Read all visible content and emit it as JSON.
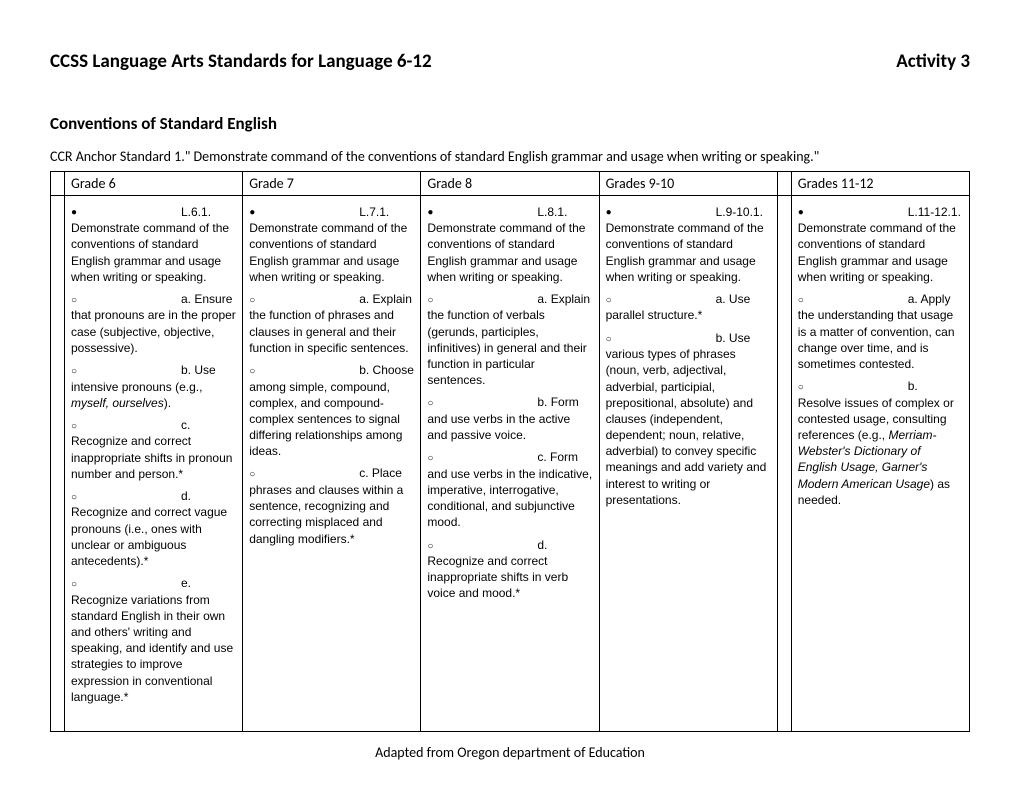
{
  "header": {
    "left": "CCSS Language Arts Standards for Language 6-12",
    "right": "Activity 3"
  },
  "subheading": "Conventions of Standard English",
  "anchor": "CCR Anchor Standard 1.\" Demonstrate command of the conventions of standard English grammar and usage when writing or speaking.\"",
  "columns": {
    "c1": "Grade  6",
    "c2": "Grade 7",
    "c3": "Grade 8",
    "c4": "Grades 9-10",
    "c5": "Grades 11-12"
  },
  "g6": {
    "main_label": "L.6.1. Demonstrate",
    "main_rest": "command of the conventions of standard English grammar and usage when writing or speaking.",
    "a_label": "a. Ensure that",
    "a_rest": "pronouns are in the proper case (subjective, objective, possessive).",
    "b_label": "b. Use",
    "b_rest_pre": "intensive pronouns (e.g., ",
    "b_rest_italic": "myself, ourselves",
    "b_rest_post": ").",
    "c_label": "c. Recognize",
    "c_rest": "and correct inappropriate shifts in pronoun number and person.*",
    "d_label": "d. Recognize",
    "d_rest": "and correct vague pronouns (i.e., ones with unclear or ambiguous antecedents).*",
    "e_label": "e. Recognize",
    "e_rest": "variations from standard English in their own and others' writing and speaking, and identify and use strategies to improve expression in conventional language.*"
  },
  "g7": {
    "main_label": "L.7.1. Demonstrate",
    "main_rest": "command of the conventions of standard English grammar and usage when writing or speaking.",
    "a_label": "a. Explain",
    "a_rest": "the function of phrases and clauses in general and their function in specific sentences.",
    "b_label": "b. Choose",
    "b_rest": "among simple, compound, complex, and compound-complex sentences to signal differing relationships among ideas.",
    "c_label": "c. Place",
    "c_rest": "phrases and clauses within a sentence, recognizing and correcting misplaced and dangling modifiers.*"
  },
  "g8": {
    "main_label": "L.8.1. Demonstrate",
    "main_rest": "command of the conventions of standard English grammar and usage when writing or speaking.",
    "a_label": "a. Explain the",
    "a_rest": "function of verbals (gerunds, participles, infinitives) in general and their function in particular sentences.",
    "b_label": "b. Form and",
    "b_rest": "use verbs in the active and passive voice.",
    "c_label": "c. Form and",
    "c_rest": "use verbs in the indicative, imperative, interrogative, conditional, and subjunctive mood.",
    "d_label": "d. Recognize",
    "d_rest": "and correct inappropriate shifts in verb voice and mood.*"
  },
  "g910": {
    "main_label": "L.9-10.1.",
    "main_rest": "Demonstrate command of the conventions of standard English grammar and usage when writing or speaking.",
    "a_label": "a. Use",
    "a_rest": "parallel structure.*",
    "b_label": "b. Use",
    "b_rest": "various types of phrases (noun, verb, adjectival, adverbial, participial, prepositional, absolute) and clauses (independent, dependent; noun, relative, adverbial) to convey specific meanings and add variety and interest to writing or presentations."
  },
  "g1112": {
    "main_label": "L.11-12.1.",
    "main_rest": "Demonstrate command of the conventions of standard English grammar and usage when writing or speaking.",
    "a_label": "a.",
    "a_rest": "Apply the understanding that usage is a matter of convention, can change over time, and is sometimes contested.",
    "b_label": "b.",
    "b_rest_pre": "Resolve issues of complex or contested usage, consulting references (e.g., ",
    "b_rest_italic": "Merriam-Webster's Dictionary of English Usage, Garner's Modern American Usage",
    "b_rest_post": ") as needed."
  },
  "footer": "Adapted from Oregon department of Education"
}
